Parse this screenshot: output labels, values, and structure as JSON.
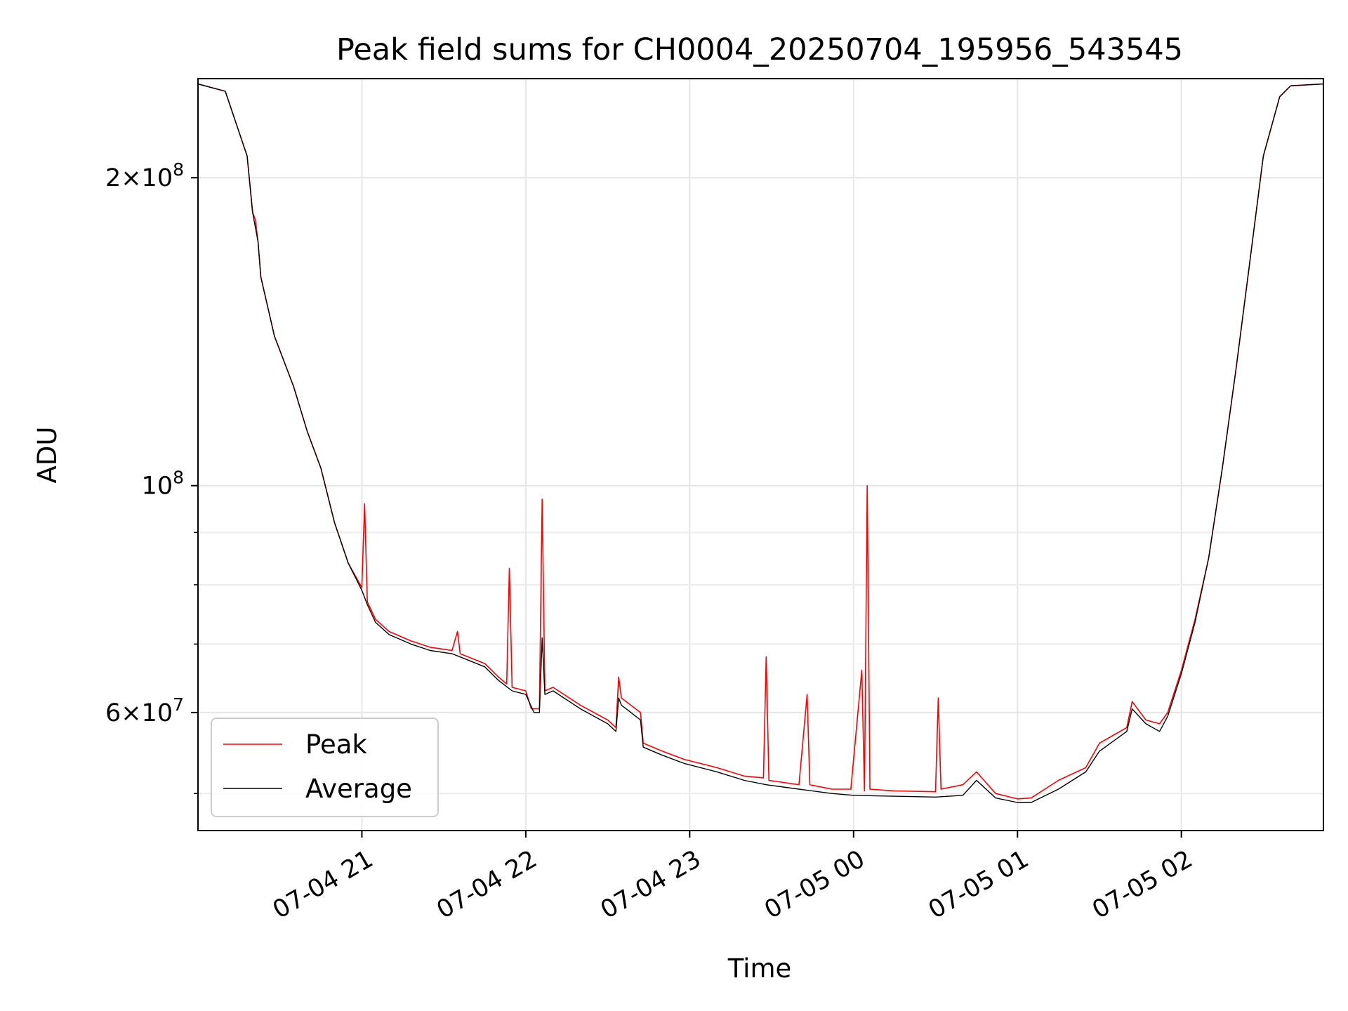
{
  "chart_data": {
    "type": "line",
    "title": "Peak field sums for CH0004_20250704_195956_543545",
    "xlabel": "Time",
    "ylabel": "ADU",
    "yscale": "log",
    "ylim": [
      46000000,
      250000000
    ],
    "xlim": [
      "07-04 20:00",
      "07-05 02:52"
    ],
    "grid": true,
    "legend": "lower-left",
    "x_ticks": [
      {
        "value": "07-04 21:00",
        "label": "07-04 21"
      },
      {
        "value": "07-04 22:00",
        "label": "07-04 22"
      },
      {
        "value": "07-04 23:00",
        "label": "07-04 23"
      },
      {
        "value": "07-05 00:00",
        "label": "07-05 00"
      },
      {
        "value": "07-05 01:00",
        "label": "07-05 01"
      },
      {
        "value": "07-05 02:00",
        "label": "07-05 02"
      }
    ],
    "y_ticks": [
      {
        "value": 200000000,
        "base": "2",
        "exp": "8",
        "times": true
      },
      {
        "value": 100000000,
        "base": "10",
        "exp": "8",
        "times": false
      },
      {
        "value": 60000000,
        "base": "6",
        "exp": "7",
        "times": true
      }
    ],
    "y_minor_ticks": [
      50000000,
      70000000,
      80000000,
      90000000
    ],
    "series": [
      {
        "name": "Peak",
        "color": "#ff0000",
        "points": [
          [
            "07-04 20:00",
            247000000
          ],
          [
            "07-04 20:10",
            243000000
          ],
          [
            "07-04 20:18",
            210000000
          ],
          [
            "07-04 20:20",
            185000000
          ],
          [
            "07-04 20:21",
            182000000
          ],
          [
            "07-04 20:22",
            173000000
          ],
          [
            "07-04 20:23",
            160000000
          ],
          [
            "07-04 20:28",
            140000000
          ],
          [
            "07-04 20:35",
            125000000
          ],
          [
            "07-04 20:40",
            113000000
          ],
          [
            "07-04 20:45",
            104000000
          ],
          [
            "07-04 20:50",
            92000000
          ],
          [
            "07-04 20:55",
            84000000
          ],
          [
            "07-04 21:00",
            79500000
          ],
          [
            "07-04 21:01",
            96000000
          ],
          [
            "07-04 21:02",
            77000000
          ],
          [
            "07-04 21:05",
            74000000
          ],
          [
            "07-04 21:10",
            72000000
          ],
          [
            "07-04 21:18",
            70500000
          ],
          [
            "07-04 21:25",
            69500000
          ],
          [
            "07-04 21:33",
            69000000
          ],
          [
            "07-04 21:35",
            72000000
          ],
          [
            "07-04 21:36",
            68500000
          ],
          [
            "07-04 21:45",
            67000000
          ],
          [
            "07-04 21:50",
            65000000
          ],
          [
            "07-04 21:53",
            64000000
          ],
          [
            "07-04 21:54",
            83000000
          ],
          [
            "07-04 21:55",
            63500000
          ],
          [
            "07-04 22:00",
            63000000
          ],
          [
            "07-04 22:02",
            60500000
          ],
          [
            "07-04 22:05",
            60500000
          ],
          [
            "07-04 22:06",
            97000000
          ],
          [
            "07-04 22:07",
            63000000
          ],
          [
            "07-04 22:10",
            63500000
          ],
          [
            "07-04 22:20",
            61000000
          ],
          [
            "07-04 22:30",
            59000000
          ],
          [
            "07-04 22:33",
            58000000
          ],
          [
            "07-04 22:34",
            65000000
          ],
          [
            "07-04 22:35",
            62000000
          ],
          [
            "07-04 22:42",
            60000000
          ],
          [
            "07-04 22:43",
            56000000
          ],
          [
            "07-04 22:50",
            55000000
          ],
          [
            "07-04 22:58",
            54000000
          ],
          [
            "07-04 23:10",
            53000000
          ],
          [
            "07-04 23:20",
            52000000
          ],
          [
            "07-04 23:27",
            51800000
          ],
          [
            "07-04 23:28",
            68000000
          ],
          [
            "07-04 23:29",
            51500000
          ],
          [
            "07-04 23:40",
            51000000
          ],
          [
            "07-04 23:43",
            62500000
          ],
          [
            "07-04 23:44",
            51000000
          ],
          [
            "07-04 23:52",
            50500000
          ],
          [
            "07-04 23:59",
            50500000
          ],
          [
            "07-05 00:03",
            66000000
          ],
          [
            "07-05 00:04",
            50300000
          ],
          [
            "07-05 00:05",
            100000000
          ],
          [
            "07-05 00:06",
            50500000
          ],
          [
            "07-05 00:15",
            50300000
          ],
          [
            "07-05 00:30",
            50200000
          ],
          [
            "07-05 00:31",
            62000000
          ],
          [
            "07-05 00:32",
            50500000
          ],
          [
            "07-05 00:40",
            51000000
          ],
          [
            "07-05 00:45",
            52500000
          ],
          [
            "07-05 00:52",
            50000000
          ],
          [
            "07-05 01:00",
            49400000
          ],
          [
            "07-05 01:05",
            49500000
          ],
          [
            "07-05 01:15",
            51500000
          ],
          [
            "07-05 01:25",
            53000000
          ],
          [
            "07-05 01:30",
            56000000
          ],
          [
            "07-05 01:40",
            58000000
          ],
          [
            "07-05 01:42",
            61500000
          ],
          [
            "07-05 01:47",
            59000000
          ],
          [
            "07-05 01:52",
            58500000
          ],
          [
            "07-05 01:55",
            60000000
          ],
          [
            "07-05 02:00",
            66000000
          ],
          [
            "07-05 02:05",
            74000000
          ],
          [
            "07-05 02:10",
            85000000
          ],
          [
            "07-05 02:15",
            104000000
          ],
          [
            "07-05 02:20",
            130000000
          ],
          [
            "07-05 02:25",
            165000000
          ],
          [
            "07-05 02:30",
            210000000
          ],
          [
            "07-05 02:36",
            240000000
          ],
          [
            "07-05 02:40",
            246000000
          ],
          [
            "07-05 02:52",
            247000000
          ]
        ]
      },
      {
        "name": "Average",
        "color": "#000000",
        "points": [
          [
            "07-04 20:00",
            247000000
          ],
          [
            "07-04 20:10",
            243000000
          ],
          [
            "07-04 20:18",
            210000000
          ],
          [
            "07-04 20:20",
            185000000
          ],
          [
            "07-04 20:22",
            173000000
          ],
          [
            "07-04 20:23",
            160000000
          ],
          [
            "07-04 20:28",
            140000000
          ],
          [
            "07-04 20:35",
            125000000
          ],
          [
            "07-04 20:40",
            113000000
          ],
          [
            "07-04 20:45",
            104000000
          ],
          [
            "07-04 20:50",
            92000000
          ],
          [
            "07-04 20:55",
            84000000
          ],
          [
            "07-04 21:00",
            79000000
          ],
          [
            "07-04 21:02",
            76500000
          ],
          [
            "07-04 21:05",
            73500000
          ],
          [
            "07-04 21:10",
            71500000
          ],
          [
            "07-04 21:18",
            70000000
          ],
          [
            "07-04 21:25",
            69000000
          ],
          [
            "07-04 21:33",
            68500000
          ],
          [
            "07-04 21:36",
            68000000
          ],
          [
            "07-04 21:45",
            66500000
          ],
          [
            "07-04 21:50",
            64500000
          ],
          [
            "07-04 21:55",
            63000000
          ],
          [
            "07-04 22:00",
            62500000
          ],
          [
            "07-04 22:03",
            60000000
          ],
          [
            "07-04 22:05",
            60000000
          ],
          [
            "07-04 22:06",
            71000000
          ],
          [
            "07-04 22:07",
            62500000
          ],
          [
            "07-04 22:10",
            63000000
          ],
          [
            "07-04 22:20",
            60500000
          ],
          [
            "07-04 22:30",
            58500000
          ],
          [
            "07-04 22:33",
            57500000
          ],
          [
            "07-04 22:34",
            62000000
          ],
          [
            "07-04 22:35",
            61000000
          ],
          [
            "07-04 22:42",
            59000000
          ],
          [
            "07-04 22:43",
            55500000
          ],
          [
            "07-04 22:50",
            54500000
          ],
          [
            "07-04 22:58",
            53500000
          ],
          [
            "07-04 23:10",
            52500000
          ],
          [
            "07-04 23:20",
            51500000
          ],
          [
            "07-04 23:28",
            51000000
          ],
          [
            "07-04 23:40",
            50500000
          ],
          [
            "07-04 23:52",
            50000000
          ],
          [
            "07-05 00:00",
            49800000
          ],
          [
            "07-05 00:15",
            49700000
          ],
          [
            "07-05 00:30",
            49600000
          ],
          [
            "07-05 00:40",
            49800000
          ],
          [
            "07-05 00:45",
            51500000
          ],
          [
            "07-05 00:52",
            49500000
          ],
          [
            "07-05 01:00",
            49000000
          ],
          [
            "07-05 01:05",
            49000000
          ],
          [
            "07-05 01:15",
            50500000
          ],
          [
            "07-05 01:25",
            52500000
          ],
          [
            "07-05 01:30",
            55000000
          ],
          [
            "07-05 01:40",
            57500000
          ],
          [
            "07-05 01:42",
            60500000
          ],
          [
            "07-05 01:47",
            58500000
          ],
          [
            "07-05 01:52",
            57500000
          ],
          [
            "07-05 01:55",
            59500000
          ],
          [
            "07-05 02:00",
            65500000
          ],
          [
            "07-05 02:05",
            73500000
          ],
          [
            "07-05 02:10",
            85000000
          ],
          [
            "07-05 02:15",
            104000000
          ],
          [
            "07-05 02:20",
            130000000
          ],
          [
            "07-05 02:25",
            165000000
          ],
          [
            "07-05 02:30",
            210000000
          ],
          [
            "07-05 02:36",
            240000000
          ],
          [
            "07-05 02:40",
            246000000
          ],
          [
            "07-05 02:52",
            247000000
          ]
        ]
      }
    ]
  }
}
